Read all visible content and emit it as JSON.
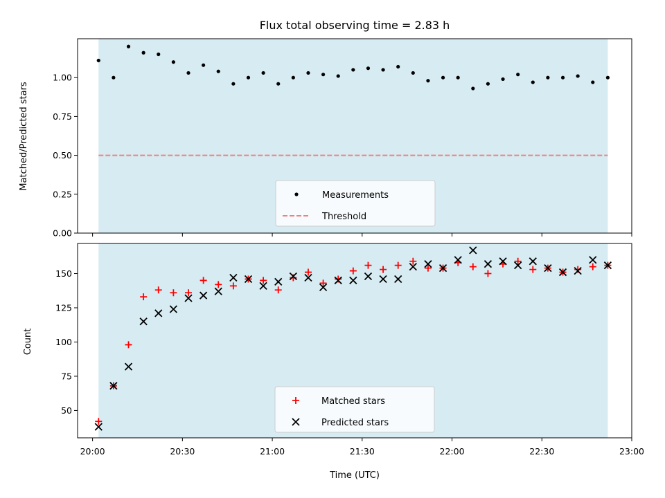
{
  "chart_data": [
    {
      "type": "scatter",
      "title": "Flux total observing time = 2.83 h",
      "xlabel": "",
      "ylabel": "Matched/Predicted stars",
      "xlim_minutes_after_2000": [
        -5,
        180
      ],
      "ylim": [
        0,
        1.25
      ],
      "yticks": [
        0.0,
        0.25,
        0.5,
        0.75,
        1.0
      ],
      "ytick_labels": [
        "0.00",
        "0.25",
        "0.50",
        "0.75",
        "1.00"
      ],
      "xtick_labels_shown": false,
      "shaded_span": [
        "20:02",
        "22:52"
      ],
      "shade_color": "#add8e6",
      "threshold": {
        "name": "Threshold",
        "value": 0.5,
        "color": "#f08080",
        "style": "dashed"
      },
      "series": [
        {
          "name": "Measurements",
          "marker": "dot",
          "color": "#000000",
          "x": [
            "20:02",
            "20:07",
            "20:12",
            "20:17",
            "20:22",
            "20:27",
            "20:32",
            "20:37",
            "20:42",
            "20:47",
            "20:52",
            "20:57",
            "21:02",
            "21:07",
            "21:12",
            "21:17",
            "21:22",
            "21:27",
            "21:32",
            "21:37",
            "21:42",
            "21:47",
            "21:52",
            "21:57",
            "22:02",
            "22:07",
            "22:12",
            "22:17",
            "22:22",
            "22:27",
            "22:32",
            "22:37",
            "22:42",
            "22:47",
            "22:52"
          ],
          "y": [
            1.11,
            1.0,
            1.2,
            1.16,
            1.15,
            1.1,
            1.03,
            1.08,
            1.04,
            0.96,
            1.0,
            1.03,
            0.96,
            1.0,
            1.03,
            1.02,
            1.01,
            1.05,
            1.06,
            1.05,
            1.07,
            1.03,
            0.98,
            1.0,
            1.0,
            0.93,
            0.96,
            0.99,
            1.02,
            0.97,
            1.0,
            1.0,
            1.01,
            0.97,
            1.0
          ]
        }
      ],
      "legend": {
        "placement": "lower-center",
        "entries": [
          "Measurements",
          "Threshold"
        ]
      }
    },
    {
      "type": "scatter",
      "title": "",
      "xlabel": "Time (UTC)",
      "ylabel": "Count",
      "xlim_minutes_after_2000": [
        -5,
        180
      ],
      "ylim": [
        30,
        172
      ],
      "yticks": [
        50,
        75,
        100,
        125,
        150
      ],
      "ytick_labels": [
        "50",
        "75",
        "100",
        "125",
        "150"
      ],
      "xticks": [
        "20:00",
        "20:30",
        "21:00",
        "21:30",
        "22:00",
        "22:30",
        "23:00"
      ],
      "shaded_span": [
        "20:02",
        "22:52"
      ],
      "shade_color": "#add8e6",
      "series": [
        {
          "name": "Matched stars",
          "marker": "plus",
          "color": "#ff0000",
          "x": [
            "20:02",
            "20:07",
            "20:12",
            "20:17",
            "20:22",
            "20:27",
            "20:32",
            "20:37",
            "20:42",
            "20:47",
            "20:52",
            "20:57",
            "21:02",
            "21:07",
            "21:12",
            "21:17",
            "21:22",
            "21:27",
            "21:32",
            "21:37",
            "21:42",
            "21:47",
            "21:52",
            "21:57",
            "22:02",
            "22:07",
            "22:12",
            "22:17",
            "22:22",
            "22:27",
            "22:32",
            "22:37",
            "22:42",
            "22:47",
            "22:52"
          ],
          "y": [
            42,
            68,
            98,
            133,
            138,
            136,
            136,
            145,
            142,
            141,
            146,
            145,
            138,
            147,
            151,
            143,
            146,
            152,
            156,
            153,
            156,
            159,
            154,
            154,
            158,
            155,
            150,
            157,
            159,
            153,
            154,
            151,
            153,
            155,
            156
          ]
        },
        {
          "name": "Predicted stars",
          "marker": "x",
          "color": "#000000",
          "x": [
            "20:02",
            "20:07",
            "20:12",
            "20:17",
            "20:22",
            "20:27",
            "20:32",
            "20:37",
            "20:42",
            "20:47",
            "20:52",
            "20:57",
            "21:02",
            "21:07",
            "21:12",
            "21:17",
            "21:22",
            "21:27",
            "21:32",
            "21:37",
            "21:42",
            "21:47",
            "21:52",
            "21:57",
            "22:02",
            "22:07",
            "22:12",
            "22:17",
            "22:22",
            "22:27",
            "22:32",
            "22:37",
            "22:42",
            "22:47",
            "22:52"
          ],
          "y": [
            38,
            68,
            82,
            115,
            121,
            124,
            132,
            134,
            137,
            147,
            146,
            141,
            144,
            148,
            147,
            140,
            145,
            145,
            148,
            146,
            146,
            155,
            157,
            154,
            160,
            167,
            157,
            159,
            156,
            159,
            154,
            151,
            152,
            160,
            156
          ]
        }
      ],
      "legend": {
        "placement": "lower-center",
        "entries": [
          "Matched stars",
          "Predicted stars"
        ]
      }
    }
  ]
}
